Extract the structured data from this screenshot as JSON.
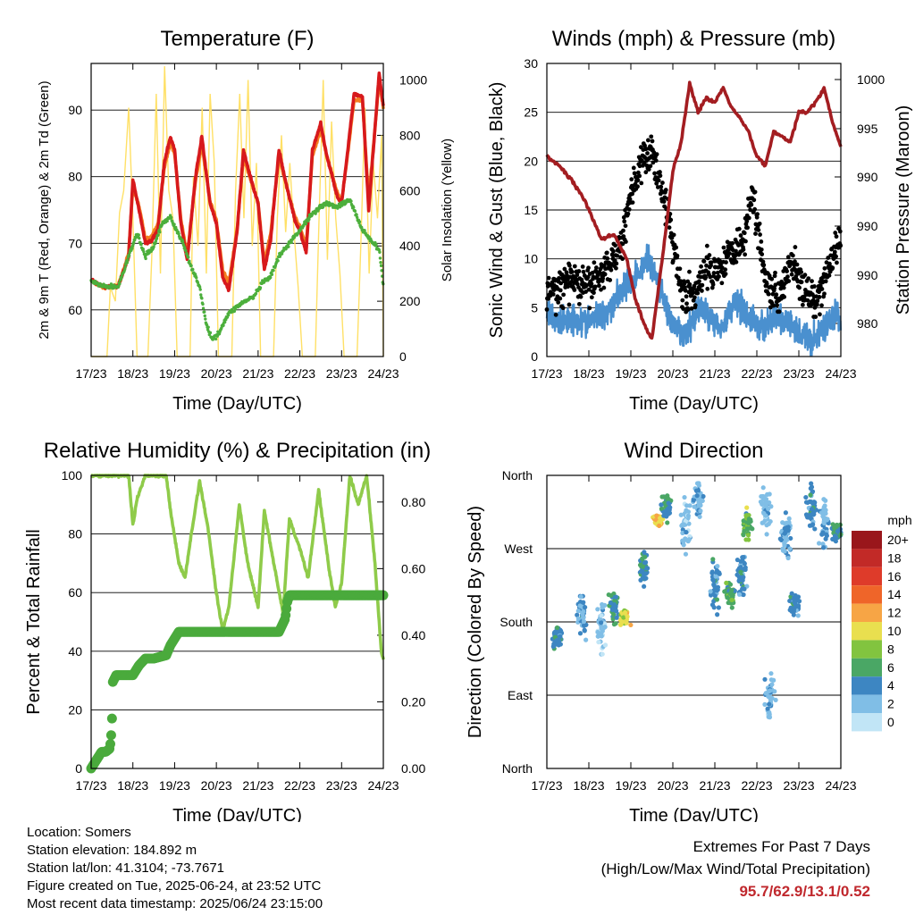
{
  "chart_data": [
    {
      "type": "line",
      "title": "Temperature (F)",
      "xlabel": "Time (Day/UTC)",
      "ylabel_left": "2m & 9m T (Red, Orange) & 2m Td (Green)",
      "ylabel_right": "Solar Insolation (Yellow)",
      "x_ticks": [
        "17/23",
        "18/23",
        "19/23",
        "20/23",
        "21/23",
        "22/23",
        "23/23",
        "24/23"
      ],
      "ylim_left": [
        53,
        97
      ],
      "yticks_left": [
        60,
        70,
        80,
        90
      ],
      "ylim_right": [
        0,
        1060
      ],
      "yticks_right": [
        0,
        200,
        400,
        600,
        800,
        1000
      ],
      "grid": "horizontal",
      "colors": {
        "t2m": "#d7191c",
        "t9m": "#f47d20",
        "td": "#4caf3c",
        "solar": "#ffe066"
      },
      "series": [
        {
          "key": "t2m",
          "x": [
            0,
            0.3,
            0.65,
            0.9,
            1.0,
            1.15,
            1.3,
            1.45,
            1.6,
            1.75,
            1.9,
            2.0,
            2.15,
            2.3,
            2.5,
            2.65,
            2.85,
            3.0,
            3.15,
            3.3,
            3.5,
            3.65,
            3.9,
            4.0,
            4.15,
            4.3,
            4.5,
            4.65,
            4.9,
            5.0,
            5.15,
            5.3,
            5.5,
            5.65,
            5.9,
            6.0,
            6.15,
            6.3,
            6.5,
            6.65,
            6.9,
            7.0
          ],
          "values": [
            64.5,
            63.5,
            63.5,
            68,
            79.5,
            75,
            70,
            70.5,
            72,
            82,
            86,
            84,
            73,
            67.5,
            80,
            86,
            76,
            73,
            65,
            63,
            72,
            84,
            78,
            76,
            66,
            70.5,
            84,
            79.5,
            73,
            72,
            68.5,
            84,
            88,
            83,
            77,
            76,
            84,
            92.5,
            92,
            75,
            95.5,
            90.5
          ]
        },
        {
          "key": "t9m",
          "x": [
            0,
            0.3,
            0.65,
            0.9,
            1.0,
            1.15,
            1.3,
            1.45,
            1.6,
            1.75,
            1.9,
            2.0,
            2.15,
            2.3,
            2.5,
            2.65,
            2.85,
            3.0,
            3.15,
            3.3,
            3.5,
            3.65,
            3.9,
            4.0,
            4.15,
            4.3,
            4.5,
            4.65,
            4.9,
            5.0,
            5.15,
            5.3,
            5.5,
            5.65,
            5.9,
            6.0,
            6.15,
            6.3,
            6.5,
            6.65,
            6.9,
            7.0
          ],
          "values": [
            64.3,
            63.4,
            63.6,
            68.5,
            78.5,
            75.5,
            70.6,
            71,
            72.8,
            81.3,
            85,
            83.5,
            73.6,
            68.2,
            79.3,
            85,
            76.3,
            73.5,
            66,
            64,
            72.3,
            83,
            78,
            76,
            67,
            71.5,
            83,
            79.3,
            73.6,
            72.6,
            69.5,
            83,
            87,
            83,
            77.5,
            76.4,
            83.5,
            91.5,
            91.5,
            76.5,
            94.5,
            90.3
          ]
        },
        {
          "key": "td",
          "x": [
            0,
            0.3,
            0.65,
            0.9,
            1.1,
            1.3,
            1.5,
            1.7,
            1.9,
            2.0,
            2.2,
            2.4,
            2.6,
            2.75,
            2.9,
            3.05,
            3.3,
            3.6,
            3.9,
            4.1,
            4.3,
            4.5,
            4.75,
            5.0,
            5.3,
            5.6,
            5.9,
            6.2,
            6.5,
            6.7,
            6.9,
            7.0
          ],
          "values": [
            64.3,
            63.5,
            63.5,
            68,
            71.5,
            68,
            69.5,
            73,
            74,
            72.5,
            70,
            66.5,
            63.5,
            58,
            55.5,
            56.5,
            59.5,
            61,
            62,
            64,
            65,
            68,
            70,
            72,
            74.5,
            76,
            75.5,
            76.5,
            72,
            70.5,
            69,
            63.5
          ]
        },
        {
          "key": "solar",
          "x": [
            0,
            0.38,
            0.46,
            0.58,
            0.68,
            0.78,
            0.9,
            1.0,
            1.1,
            1.36,
            1.45,
            1.56,
            1.66,
            1.76,
            1.86,
            1.96,
            2.06,
            2.37,
            2.45,
            2.56,
            2.66,
            2.76,
            2.85,
            2.95,
            3.05,
            3.37,
            3.46,
            3.56,
            3.66,
            3.76,
            3.86,
            3.96,
            4.06,
            4.37,
            4.46,
            4.56,
            4.66,
            4.76,
            4.86,
            4.96,
            5.06,
            5.37,
            5.46,
            5.56,
            5.66,
            5.76,
            5.86,
            5.96,
            6.06,
            6.37,
            6.46,
            6.56,
            6.66,
            6.76,
            6.86,
            6.96,
            7.0
          ],
          "values": [
            0,
            0,
            250,
            200,
            520,
            600,
            900,
            500,
            0,
            0,
            350,
            950,
            300,
            1050,
            600,
            500,
            0,
            0,
            650,
            400,
            900,
            300,
            950,
            700,
            0,
            0,
            600,
            950,
            500,
            1000,
            400,
            700,
            0,
            0,
            500,
            800,
            450,
            700,
            450,
            250,
            0,
            0,
            500,
            1000,
            350,
            850,
            500,
            300,
            0,
            0,
            400,
            900,
            300,
            700,
            500,
            800,
            0
          ]
        }
      ]
    },
    {
      "type": "scatter",
      "title": "Winds (mph) & Pressure (mb)",
      "xlabel": "Time (Day/UTC)",
      "ylabel_left": "Sonic Wind & Gust (Blue, Black)",
      "ylabel_right": "Station Pressure (Maroon)",
      "x_ticks": [
        "17/23",
        "18/23",
        "19/23",
        "20/23",
        "21/23",
        "22/23",
        "23/23",
        "24/23"
      ],
      "ylim_left": [
        0,
        30
      ],
      "yticks_left": [
        0,
        5,
        10,
        15,
        20,
        25,
        30
      ],
      "yticks_right": [
        "980",
        "990",
        "990",
        "990",
        "995",
        "1000",
        "1000"
      ],
      "grid": "horizontal",
      "colors": {
        "wind": "#4a90cf",
        "gust": "#000000",
        "pressure": "#a31d21"
      },
      "series": [
        {
          "key": "wind",
          "x": [
            0,
            0.3,
            0.6,
            0.9,
            1.2,
            1.5,
            1.8,
            2.1,
            2.4,
            2.7,
            3.0,
            3.3,
            3.6,
            3.9,
            4.2,
            4.5,
            4.8,
            5.1,
            5.4,
            5.7,
            6.0,
            6.3,
            6.6,
            6.9,
            7.0
          ],
          "values": [
            4.5,
            3.5,
            4,
            3.5,
            4,
            5,
            7,
            8,
            10,
            7,
            3,
            2,
            5,
            4,
            3,
            6,
            4,
            3,
            4,
            3.5,
            2.5,
            1.5,
            3,
            4.5,
            3
          ]
        },
        {
          "key": "gust",
          "x": [
            0,
            0.3,
            0.6,
            0.9,
            1.2,
            1.5,
            1.8,
            2.0,
            2.3,
            2.5,
            2.7,
            2.9,
            3.2,
            3.5,
            3.8,
            4.1,
            4.4,
            4.7,
            4.9,
            5.2,
            5.5,
            5.8,
            6.1,
            6.4,
            6.7,
            6.9,
            7.0
          ],
          "values": [
            6.5,
            7,
            8,
            7,
            8,
            9.5,
            12,
            17,
            20,
            21,
            18,
            14,
            7,
            6,
            9,
            9,
            11,
            12,
            17,
            8,
            6,
            10,
            7,
            5,
            9,
            11,
            12
          ]
        },
        {
          "key": "pressure",
          "x": [
            0,
            0.3,
            0.6,
            0.9,
            1.1,
            1.3,
            1.6,
            1.9,
            2.1,
            2.3,
            2.5,
            2.75,
            3.0,
            3.2,
            3.4,
            3.6,
            3.8,
            4.0,
            4.2,
            4.4,
            4.6,
            4.8,
            5.0,
            5.2,
            5.4,
            5.6,
            5.8,
            6.0,
            6.2,
            6.4,
            6.6,
            6.8,
            7.0
          ],
          "values": [
            20.5,
            19.5,
            18,
            16,
            14,
            12,
            12.5,
            10,
            6,
            3.5,
            1.8,
            10,
            19,
            22,
            28,
            25,
            26.5,
            26,
            27.5,
            25.5,
            24.5,
            23,
            20.5,
            19.5,
            23,
            22.5,
            22,
            25,
            25,
            26,
            27.5,
            24,
            21.5
          ]
        }
      ]
    },
    {
      "type": "line",
      "title": "Relative Humidity (%) & Precipitation (in)",
      "xlabel": "Time (Day/UTC)",
      "ylabel_left": "Percent & Total Rainfall",
      "x_ticks": [
        "17/23",
        "18/23",
        "19/23",
        "20/23",
        "21/23",
        "22/23",
        "23/23",
        "24/23"
      ],
      "ylim_left": [
        0,
        100
      ],
      "yticks_left": [
        0,
        20,
        40,
        60,
        80,
        100
      ],
      "ylim_right": [
        0,
        0.88
      ],
      "yticks_right": [
        "0.00",
        "0.20",
        "0.40",
        "0.60",
        "0.80"
      ],
      "grid": "horizontal",
      "colors": {
        "rh": "#8fcb4a",
        "precip": "#4aaa3c"
      },
      "series": [
        {
          "key": "rh",
          "x": [
            0,
            0.5,
            0.8,
            0.9,
            1.0,
            1.1,
            1.3,
            1.5,
            1.8,
            1.9,
            2.1,
            2.25,
            2.4,
            2.6,
            2.8,
            3.0,
            3.15,
            3.3,
            3.55,
            3.75,
            4.0,
            4.15,
            4.4,
            4.6,
            4.75,
            5.0,
            5.2,
            5.45,
            5.7,
            5.85,
            6.0,
            6.2,
            6.4,
            6.6,
            6.8,
            6.95,
            7.0
          ],
          "values": [
            100,
            100,
            100,
            100,
            83,
            92,
            100,
            100,
            100,
            88,
            70,
            65,
            80,
            98,
            82,
            60,
            47,
            55,
            90,
            70,
            55,
            88,
            68,
            53,
            85,
            75,
            65,
            95,
            68,
            55,
            63,
            100,
            90,
            100,
            70,
            40,
            37
          ]
        },
        {
          "key": "precip",
          "x": [
            0,
            0.1,
            0.2,
            0.25,
            0.35,
            0.45,
            0.48,
            0.5,
            0.52,
            0.6,
            0.75,
            1.0,
            1.15,
            1.3,
            1.5,
            1.8,
            1.9,
            2.0,
            2.1,
            2.5,
            3.0,
            3.5,
            4.0,
            4.5,
            4.65,
            4.7,
            4.75,
            5.0,
            5.5,
            6.0,
            6.5,
            7.0
          ],
          "values": [
            0,
            0.02,
            0.04,
            0.05,
            0.05,
            0.06,
            0.1,
            0.15,
            0.26,
            0.28,
            0.28,
            0.28,
            0.31,
            0.33,
            0.33,
            0.34,
            0.37,
            0.39,
            0.41,
            0.41,
            0.41,
            0.41,
            0.41,
            0.41,
            0.45,
            0.5,
            0.52,
            0.52,
            0.52,
            0.52,
            0.52,
            0.52
          ]
        }
      ]
    },
    {
      "type": "scatter",
      "title": "Wind Direction",
      "xlabel": "Time (Day/UTC)",
      "ylabel": "Direction (Colored By Speed)",
      "x_ticks": [
        "17/23",
        "18/23",
        "19/23",
        "20/23",
        "21/23",
        "22/23",
        "23/23",
        "24/23"
      ],
      "ylim": [
        0,
        360
      ],
      "yticks": [
        {
          "v": 0,
          "label": "North"
        },
        {
          "v": 90,
          "label": "East"
        },
        {
          "v": 180,
          "label": "South"
        },
        {
          "v": 270,
          "label": "West"
        },
        {
          "v": 360,
          "label": "North"
        }
      ],
      "grid": "horizontal",
      "colorbar": {
        "title": "mph",
        "labels": [
          "20+",
          "18",
          "16",
          "14",
          "12",
          "10",
          "8",
          "6",
          "4",
          "2",
          "0"
        ],
        "colors": [
          "#99161b",
          "#c22a27",
          "#de3b2a",
          "#ef6529",
          "#f7a545",
          "#e9df4f",
          "#82c43f",
          "#4aa765",
          "#3d86c2",
          "#80bee6",
          "#c1e5f6"
        ]
      },
      "clusters": [
        {
          "x": 0.25,
          "dir": 160,
          "spread": 18,
          "speed": 4
        },
        {
          "x": 0.85,
          "dir": 190,
          "spread": 45,
          "speed": 3
        },
        {
          "x": 1.3,
          "dir": 170,
          "spread": 40,
          "speed": 2
        },
        {
          "x": 1.6,
          "dir": 200,
          "spread": 30,
          "speed": 5
        },
        {
          "x": 1.85,
          "dir": 185,
          "spread": 15,
          "speed": 10
        },
        {
          "x": 2.3,
          "dir": 245,
          "spread": 30,
          "speed": 5
        },
        {
          "x": 2.65,
          "dir": 305,
          "spread": 12,
          "speed": 11
        },
        {
          "x": 2.85,
          "dir": 320,
          "spread": 25,
          "speed": 5
        },
        {
          "x": 3.3,
          "dir": 300,
          "spread": 60,
          "speed": 2
        },
        {
          "x": 3.6,
          "dir": 330,
          "spread": 30,
          "speed": 3
        },
        {
          "x": 4.0,
          "dir": 225,
          "spread": 45,
          "speed": 4
        },
        {
          "x": 4.35,
          "dir": 215,
          "spread": 20,
          "speed": 6
        },
        {
          "x": 4.65,
          "dir": 240,
          "spread": 40,
          "speed": 4
        },
        {
          "x": 4.8,
          "dir": 300,
          "spread": 25,
          "speed": 7
        },
        {
          "x": 5.2,
          "dir": 320,
          "spread": 40,
          "speed": 2
        },
        {
          "x": 5.3,
          "dir": 90,
          "spread": 40,
          "speed": 2
        },
        {
          "x": 5.7,
          "dir": 285,
          "spread": 45,
          "speed": 3
        },
        {
          "x": 5.9,
          "dir": 200,
          "spread": 25,
          "speed": 4
        },
        {
          "x": 6.3,
          "dir": 320,
          "spread": 35,
          "speed": 4
        },
        {
          "x": 6.6,
          "dir": 300,
          "spread": 40,
          "speed": 3
        },
        {
          "x": 6.9,
          "dir": 290,
          "spread": 20,
          "speed": 5
        }
      ]
    }
  ],
  "station": {
    "location": "Location: Somers",
    "elevation": "Station elevation: 184.892 m",
    "latlon": "Station lat/lon: 41.3104; -73.7671",
    "created": "Figure created on Tue, 2025-06-24, at 23:52 UTC",
    "timestamp": "Most recent data timestamp: 2025/06/24 23:15:00"
  },
  "extremes": {
    "line1": "Extremes For Past 7 Days",
    "line2": "(High/Low/Max Wind/Total Precipitation)",
    "values": "95.7/62.9/13.1/0.52"
  }
}
